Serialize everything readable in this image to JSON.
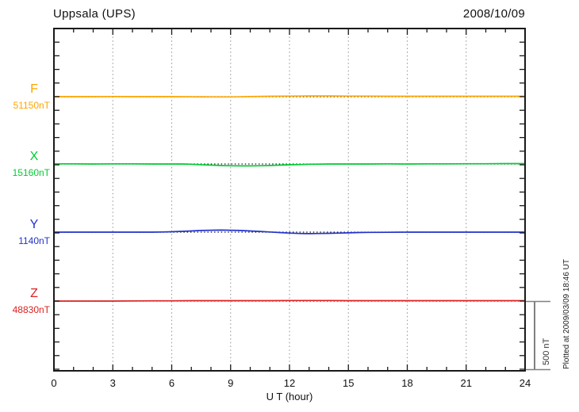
{
  "header": {
    "title": "Uppsala (UPS)",
    "date": "2008/10/09"
  },
  "chart_data": {
    "type": "line",
    "station": "Uppsala (UPS)",
    "date": "2008/10/09",
    "xlabel": "U T (hour)",
    "x_range": [
      0,
      24
    ],
    "x_tick_labels": [
      "0",
      "3",
      "6",
      "9",
      "12",
      "15",
      "18",
      "21",
      "24"
    ],
    "grid_hours": [
      3,
      6,
      9,
      12,
      15,
      18,
      21
    ],
    "y_tick_interval_nT": 100,
    "scale_bar": {
      "label": "500 nT",
      "nT": 500
    },
    "footnote": "Plotted at 2009/03/09 18:46 UT",
    "series": [
      {
        "component": "F",
        "value_label": "51150nT",
        "baseline_nT": 51150,
        "color": "#FFA500",
        "points": [
          [
            0,
            0
          ],
          [
            1,
            0
          ],
          [
            2,
            0
          ],
          [
            3,
            1
          ],
          [
            4,
            0
          ],
          [
            5,
            0
          ],
          [
            6,
            0
          ],
          [
            7,
            -1
          ],
          [
            8,
            -2
          ],
          [
            9,
            -2
          ],
          [
            9.5,
            -1
          ],
          [
            10,
            1
          ],
          [
            11,
            3
          ],
          [
            12,
            4
          ],
          [
            13,
            5
          ],
          [
            14,
            5
          ],
          [
            15,
            4
          ],
          [
            16,
            4
          ],
          [
            17,
            3
          ],
          [
            18,
            3
          ],
          [
            19,
            3
          ],
          [
            20,
            3
          ],
          [
            21,
            3
          ],
          [
            22,
            3
          ],
          [
            23,
            3
          ],
          [
            24,
            3
          ]
        ]
      },
      {
        "component": "X",
        "value_label": "15160nT",
        "baseline_nT": 15160,
        "color": "#00CC33",
        "points": [
          [
            0,
            1
          ],
          [
            1,
            1
          ],
          [
            2,
            0
          ],
          [
            3,
            1
          ],
          [
            4,
            1
          ],
          [
            5,
            0
          ],
          [
            6,
            0
          ],
          [
            6.5,
            0
          ],
          [
            7,
            -2
          ],
          [
            7.5,
            -5
          ],
          [
            8,
            -8
          ],
          [
            8.5,
            -11
          ],
          [
            9,
            -13
          ],
          [
            9.5,
            -14
          ],
          [
            10,
            -14
          ],
          [
            10.5,
            -13
          ],
          [
            11,
            -11
          ],
          [
            11.5,
            -8
          ],
          [
            12,
            -6
          ],
          [
            12.5,
            -4
          ],
          [
            13,
            -2
          ],
          [
            13.5,
            -1
          ],
          [
            14,
            0
          ],
          [
            15,
            0
          ],
          [
            16,
            0
          ],
          [
            17,
            1
          ],
          [
            18,
            0
          ],
          [
            19,
            1
          ],
          [
            20,
            1
          ],
          [
            21,
            2
          ],
          [
            22,
            2
          ],
          [
            23,
            3
          ],
          [
            24,
            3
          ]
        ]
      },
      {
        "component": "Y",
        "value_label": "1140nT",
        "baseline_nT": 1140,
        "color": "#2233CC",
        "points": [
          [
            0,
            0
          ],
          [
            1,
            0
          ],
          [
            2,
            0
          ],
          [
            3,
            0
          ],
          [
            4,
            0
          ],
          [
            5,
            0
          ],
          [
            5.5,
            1
          ],
          [
            6,
            3
          ],
          [
            6.5,
            6
          ],
          [
            7,
            9
          ],
          [
            7.5,
            12
          ],
          [
            8,
            14
          ],
          [
            8.5,
            15
          ],
          [
            9,
            14
          ],
          [
            9.5,
            12
          ],
          [
            10,
            9
          ],
          [
            10.5,
            5
          ],
          [
            11,
            1
          ],
          [
            11.5,
            -3
          ],
          [
            12,
            -7
          ],
          [
            12.5,
            -10
          ],
          [
            13,
            -11
          ],
          [
            13.5,
            -10
          ],
          [
            14,
            -9
          ],
          [
            14.5,
            -7
          ],
          [
            15,
            -5
          ],
          [
            15.5,
            -3
          ],
          [
            16,
            -2
          ],
          [
            17,
            -1
          ],
          [
            18,
            0
          ],
          [
            19,
            0
          ],
          [
            20,
            0
          ],
          [
            21,
            0
          ],
          [
            22,
            0
          ],
          [
            23,
            0
          ],
          [
            24,
            0
          ]
        ]
      },
      {
        "component": "Z",
        "value_label": "48830nT",
        "baseline_nT": 48830,
        "color": "#DD2222",
        "points": [
          [
            0,
            0
          ],
          [
            1,
            0
          ],
          [
            2,
            0
          ],
          [
            3,
            0
          ],
          [
            4,
            1
          ],
          [
            5,
            2
          ],
          [
            6,
            2
          ],
          [
            7,
            3
          ],
          [
            8,
            3
          ],
          [
            9,
            3
          ],
          [
            10,
            3
          ],
          [
            11,
            3
          ],
          [
            12,
            4
          ],
          [
            13,
            4
          ],
          [
            14,
            4
          ],
          [
            15,
            3
          ],
          [
            16,
            3
          ],
          [
            17,
            3
          ],
          [
            18,
            3
          ],
          [
            19,
            3
          ],
          [
            20,
            3
          ],
          [
            21,
            3
          ],
          [
            22,
            3
          ],
          [
            23,
            3
          ],
          [
            24,
            3
          ]
        ]
      }
    ]
  }
}
